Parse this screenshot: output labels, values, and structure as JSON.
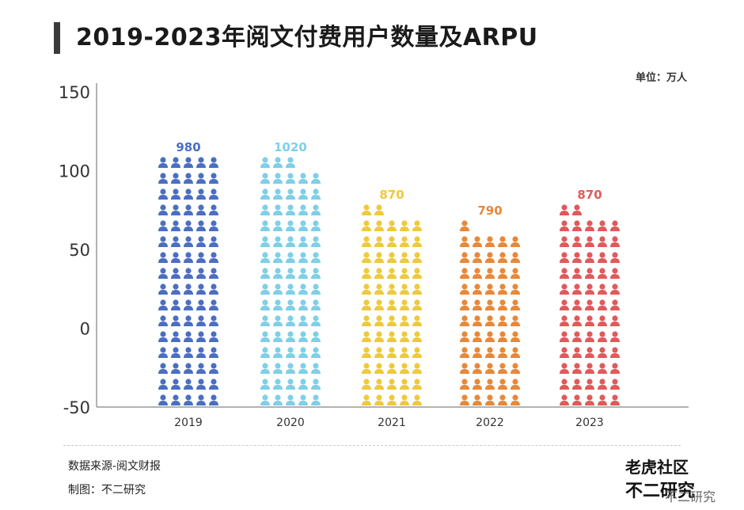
{
  "title": "2019-2023年阅文付费用户数量及ARPU",
  "unit_label": "单位：万人",
  "source_label": "数据来源-阅文财报",
  "made_by_label": "制图：不二研究",
  "logo_top": "老虎社区",
  "logo_bottom": "不二研究",
  "watermark": "不二研究",
  "colors": [
    "#4a6fc2",
    "#7fcfe8",
    "#efc93d",
    "#e88838",
    "#e05a5a"
  ],
  "chart_data": {
    "type": "bar",
    "categories": [
      "2019",
      "2020",
      "2021",
      "2022",
      "2023"
    ],
    "values": [
      980,
      1020,
      870,
      790,
      870
    ],
    "data_labels": [
      "980",
      "1020",
      "870",
      "790",
      "870"
    ],
    "yticks": [
      150,
      100,
      50,
      0,
      -50
    ],
    "ylim": [
      -50,
      150
    ],
    "title": "2019-2023年阅文付费用户数量及ARPU",
    "xlabel": "",
    "ylabel": ""
  }
}
